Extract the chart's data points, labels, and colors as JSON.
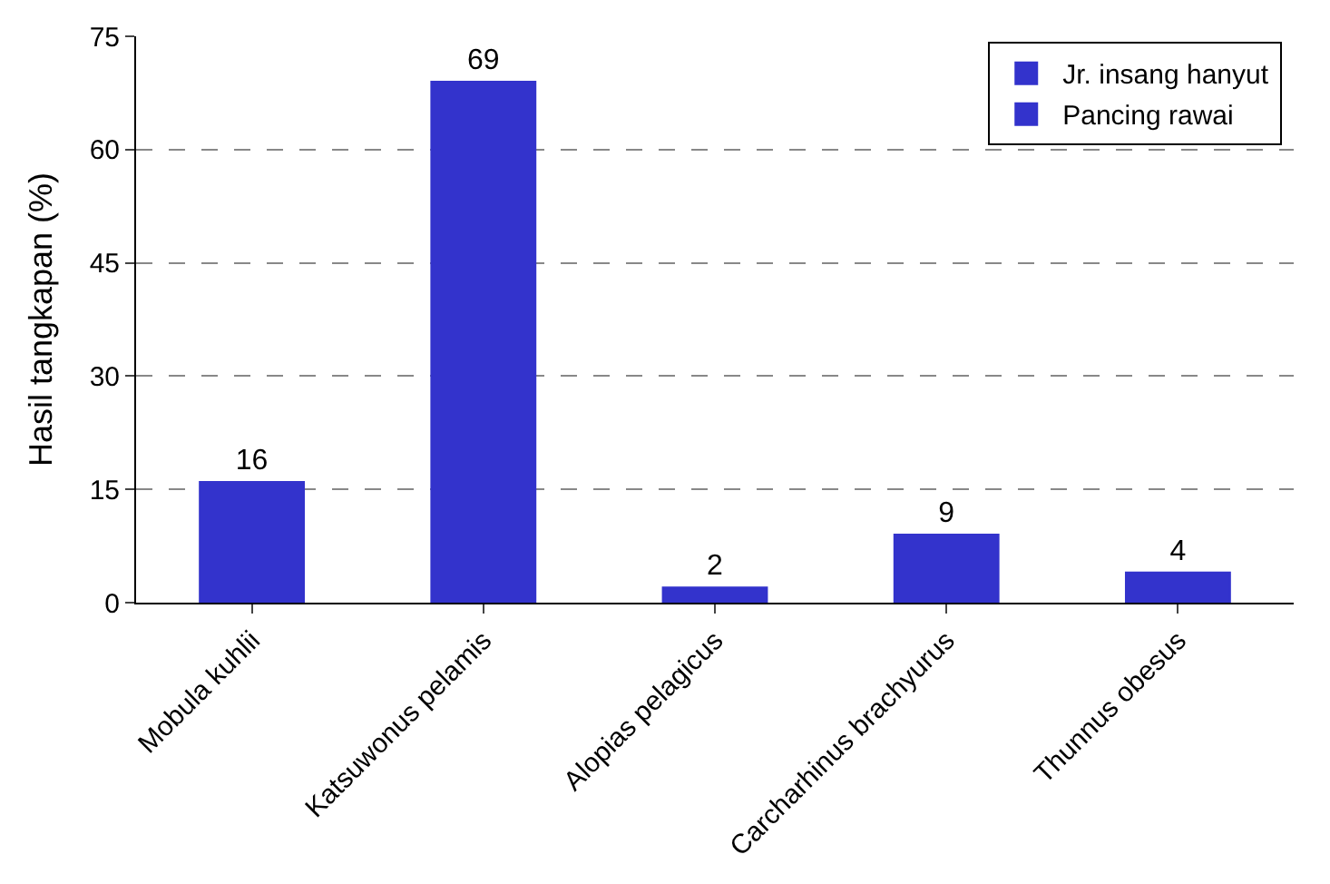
{
  "chart_data": {
    "type": "bar",
    "ylabel": "Hasil tangkapan (%)",
    "categories": [
      "Mobula kuhlii",
      "Katsuwonus pelamis",
      "Alopias pelagicus",
      "Carcharhinus brachyurus",
      "Thunnus obesus"
    ],
    "series": [
      {
        "name": "Jr. insang hanyut",
        "color": "#3333cc",
        "values": [
          16,
          69,
          null,
          null,
          null
        ]
      },
      {
        "name": "Pancing rawai",
        "color": "#3333cc",
        "values": [
          null,
          null,
          2,
          9,
          4
        ]
      }
    ],
    "ylim": [
      0,
      75
    ],
    "yticks": [
      0,
      15,
      30,
      45,
      60,
      75
    ],
    "grid": "y",
    "legend": "top right",
    "data_labels": true
  }
}
